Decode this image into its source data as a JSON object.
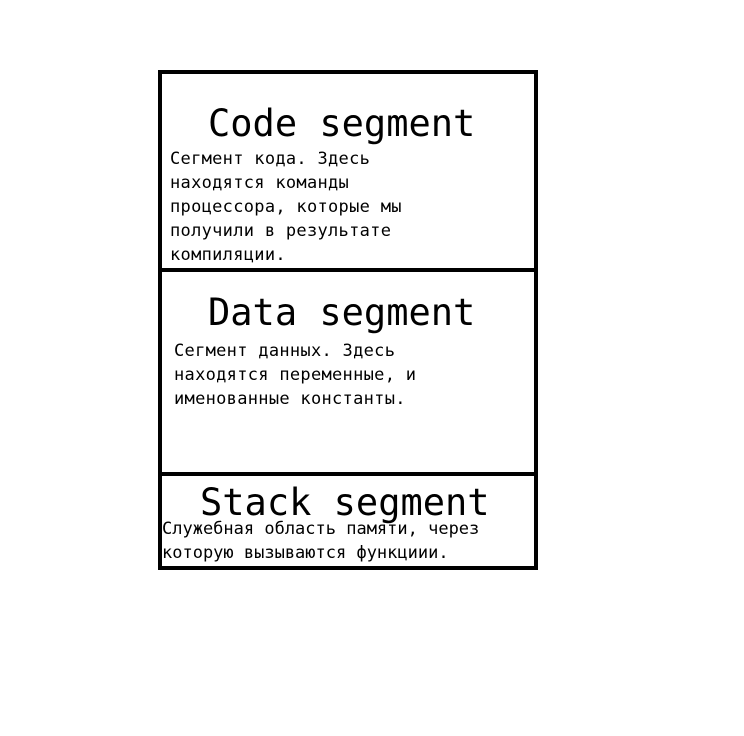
{
  "segments": {
    "code": {
      "title": "Code segment",
      "description": "Сегмент кода. Здесь\nнаходятся команды\nпроцессора, которые мы\nполучили в результате\nкомпиляции."
    },
    "data": {
      "title": "Data segment",
      "description": "Сегмент данных. Здесь\nнаходятся переменные, и\nименованные константы."
    },
    "stack": {
      "title": "Stack segment",
      "description": "Служебная область памяти, через\nкоторую вызываются функциии."
    }
  }
}
